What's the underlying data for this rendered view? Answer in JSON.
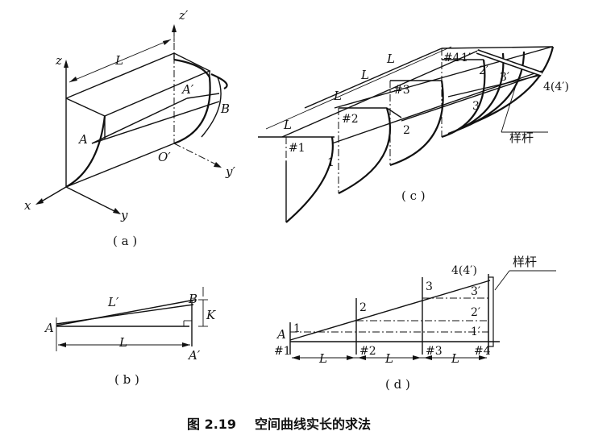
{
  "figure": {
    "number": "图 2.19",
    "caption": "空间曲线实长的求法"
  },
  "panel_a": {
    "label": "( a )",
    "axis_z": "z",
    "axis_z_prime": "z′",
    "axis_x": "x",
    "axis_y": "y",
    "axis_y_prime": "y′",
    "origin_prime": "O′",
    "length": "L",
    "point_a": "A",
    "point_a_prime": "A′",
    "point_b": "B"
  },
  "panel_b": {
    "label": "( b )",
    "point_a": "A",
    "point_a_prime": "A′",
    "point_b": "B",
    "true_length": "L′",
    "length": "L",
    "offset": "K"
  },
  "panel_c": {
    "label": "( c )",
    "length_1": "L",
    "length_2": "L",
    "length_3": "L",
    "length_4": "L",
    "station_1": "#1",
    "station_2": "#2",
    "station_3": "#3",
    "station_4": "#4",
    "point_1": "1",
    "point_2": "2",
    "point_3": "3",
    "point_1p": "1′",
    "point_2p": "2′",
    "point_3p": "3′",
    "point_4": "4(4′)",
    "batten": "样杆"
  },
  "panel_d": {
    "label": "( d )",
    "point_a": "A",
    "point_1": "1",
    "station_1": "#1",
    "point_2": "2",
    "point_3": "3",
    "point_4": "4(4′)",
    "point_1p": "1′",
    "point_2p": "2′",
    "point_3p": "3′",
    "station_2": "#2",
    "station_3": "#3",
    "station_4": "#4",
    "length_1": "L",
    "length_2": "L",
    "length_3": "L",
    "batten": "样杆"
  }
}
